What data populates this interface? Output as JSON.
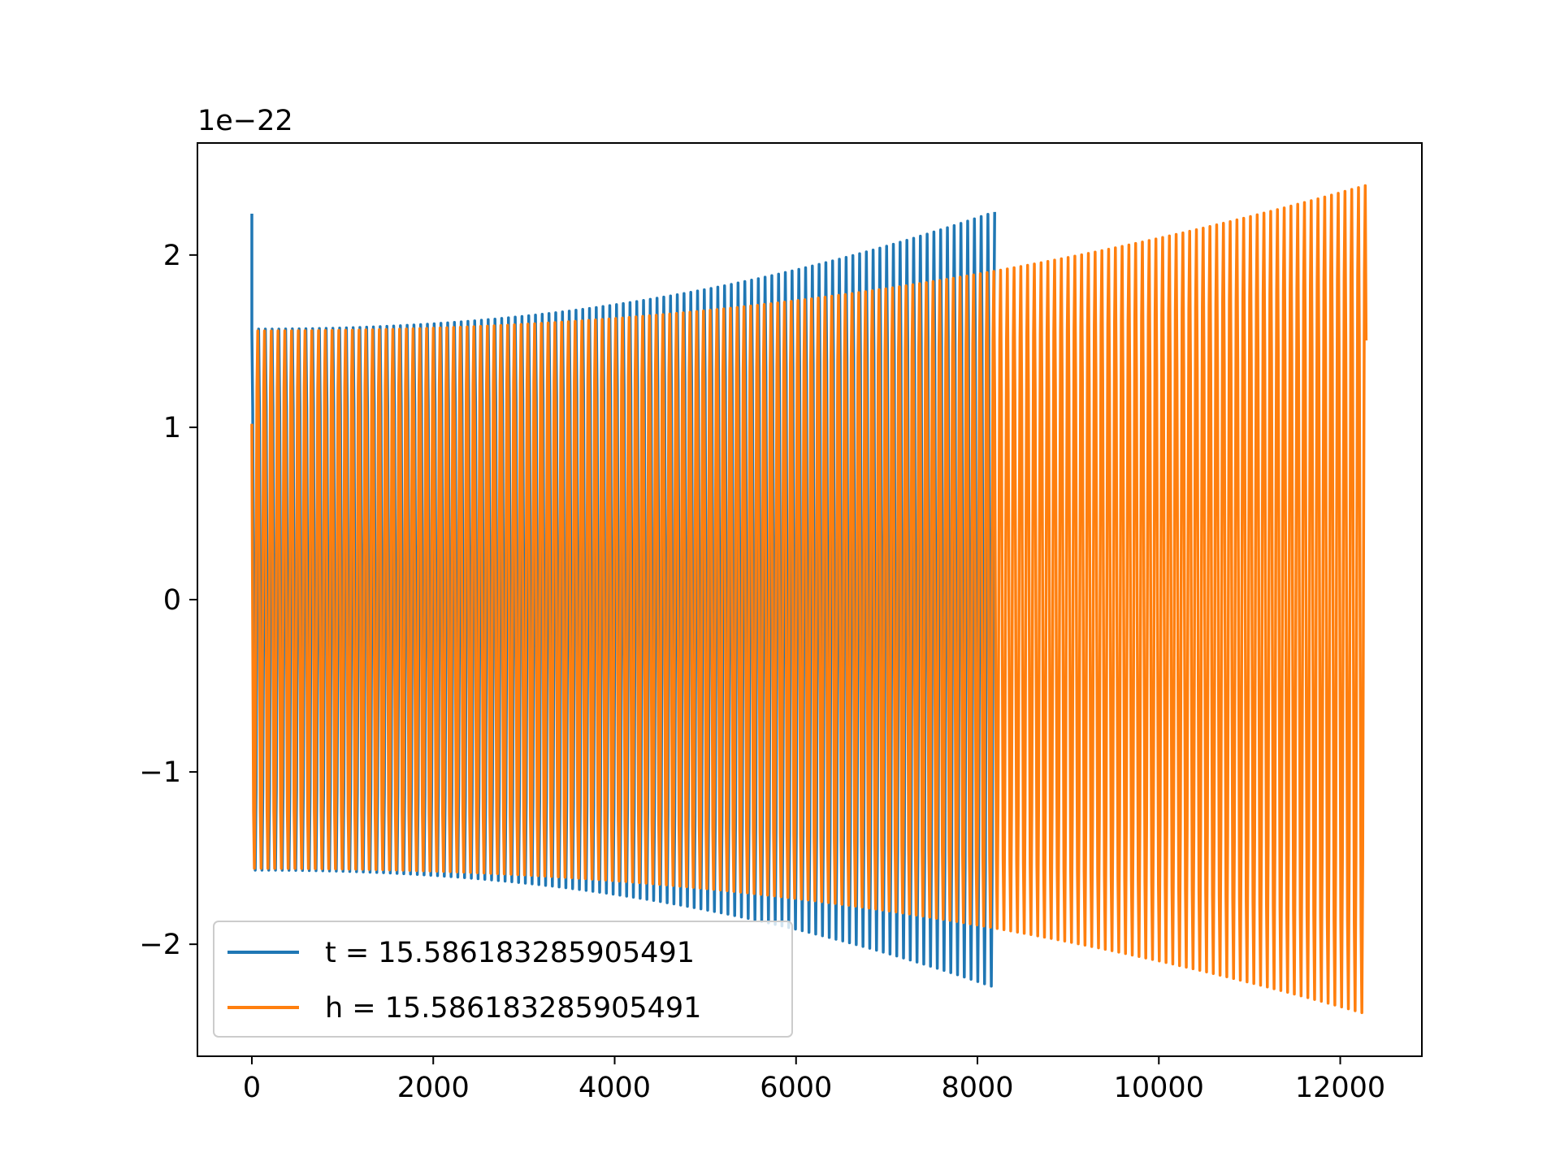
{
  "chart_data": {
    "type": "line",
    "title": "",
    "xlabel": "",
    "ylabel": "",
    "y_offset_label": "1e−22",
    "xlim": [
      -600,
      12900
    ],
    "ylim": [
      -2.65,
      2.65
    ],
    "x_ticks": [
      0,
      2000,
      4000,
      6000,
      8000,
      10000,
      12000
    ],
    "x_tick_labels": [
      "0",
      "2000",
      "4000",
      "6000",
      "8000",
      "10000",
      "12000"
    ],
    "y_ticks": [
      -2,
      -1,
      0,
      1,
      2
    ],
    "y_tick_labels": [
      "−2",
      "−1",
      "0",
      "1",
      "2"
    ],
    "grid": false,
    "legend_position": "lower-left",
    "series": [
      {
        "name": "t = 15.586183285905491",
        "color": "#1f77b4",
        "x_start": 0,
        "x_end": 8190,
        "initial_spike": 2.24,
        "amplitude_start": 1.57,
        "amplitude_end": 2.25,
        "cycles": 110
      },
      {
        "name": "h = 15.586183285905491",
        "color": "#ff7f0e",
        "x_start": 0,
        "x_end": 12285,
        "initial_value": 1.02,
        "amplitude_start": 1.57,
        "amplitude_end": 2.42,
        "cycles": 165
      }
    ]
  }
}
